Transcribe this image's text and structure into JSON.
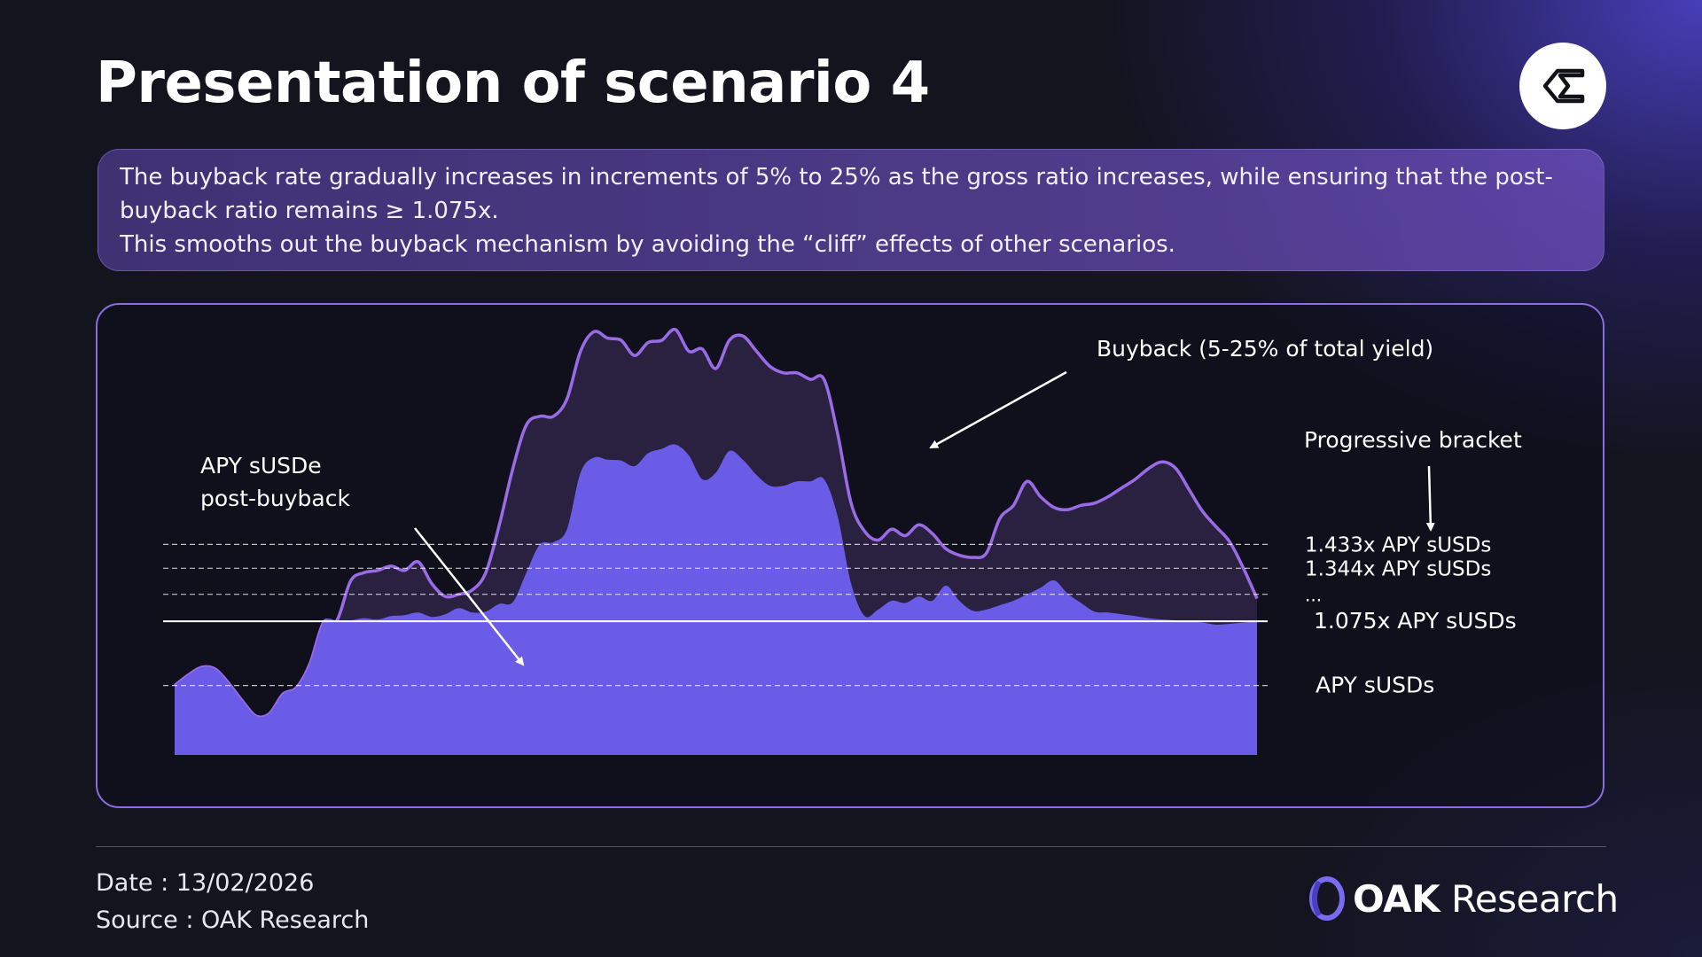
{
  "header": {
    "title": "Presentation of scenario 4",
    "logo_icon": "sigma-icon"
  },
  "description": {
    "line1": "The buyback rate gradually increases in increments of 5% to 25% as the gross ratio increases, while ensuring that the post-buyback ratio remains ≥ 1.075x.",
    "line2": "This smooths out the buyback mechanism by avoiding the “cliff” effects of other scenarios."
  },
  "chart_data": {
    "type": "area",
    "title": "",
    "xlabel": "",
    "ylabel": "",
    "colors": {
      "gross_area": "#2e2446",
      "gross_line": "#9a6be6",
      "post_area": "#6b5ce8",
      "threshold": "#ffffff"
    },
    "ylim": [
      0,
      10
    ],
    "reference_levels": [
      {
        "label": "1.433x APY sUSDs",
        "value": 4.85,
        "style": "dashed"
      },
      {
        "label": "1.344x APY sUSDs",
        "value": 4.3,
        "style": "dashed"
      },
      {
        "label": "...",
        "value": 3.7,
        "style": "dashed"
      },
      {
        "label": "1.075x APY sUSDs",
        "value": 3.08,
        "style": "solid"
      },
      {
        "label": "APY sUSDs",
        "value": 1.6,
        "style": "dashed"
      }
    ],
    "series": [
      {
        "name": "gross",
        "x": [
          0,
          1,
          2,
          3,
          4,
          5,
          6,
          7,
          8,
          9,
          10,
          11,
          12,
          13,
          14,
          15,
          16,
          17,
          18,
          19,
          20,
          21,
          22,
          23,
          24,
          25,
          26,
          27,
          28,
          29,
          30,
          31,
          32,
          33,
          34,
          35,
          36,
          37,
          38,
          39,
          40,
          41,
          42,
          43,
          44,
          45,
          46,
          47,
          48,
          49,
          50,
          51,
          52,
          53,
          54,
          55,
          56,
          57,
          58,
          59,
          60,
          61,
          62,
          63,
          64,
          65,
          66,
          67,
          68,
          69,
          70,
          71,
          72,
          73,
          74,
          75,
          76,
          77,
          78,
          79,
          80
        ],
        "values": [
          1.6,
          1.84,
          2.02,
          1.98,
          1.65,
          1.25,
          0.9,
          0.95,
          1.4,
          1.55,
          2.1,
          3.05,
          3.1,
          4.0,
          4.2,
          4.25,
          4.35,
          4.25,
          4.45,
          3.95,
          3.65,
          3.7,
          3.8,
          4.2,
          5.3,
          6.6,
          7.6,
          7.8,
          7.8,
          8.2,
          9.3,
          9.75,
          9.6,
          9.55,
          9.2,
          9.5,
          9.55,
          9.8,
          9.3,
          9.35,
          8.9,
          9.55,
          9.65,
          9.3,
          8.95,
          8.8,
          8.8,
          8.65,
          8.65,
          7.4,
          5.8,
          5.15,
          4.95,
          5.2,
          5.05,
          5.3,
          5.1,
          4.75,
          4.6,
          4.55,
          4.65,
          5.45,
          5.75,
          6.3,
          5.95,
          5.7,
          5.65,
          5.75,
          5.8,
          5.95,
          6.15,
          6.35,
          6.6,
          6.75,
          6.6,
          6.1,
          5.6,
          5.25,
          4.9,
          4.3,
          3.6
        ]
      },
      {
        "name": "post-buyback",
        "x": [
          0,
          1,
          2,
          3,
          4,
          5,
          6,
          7,
          8,
          9,
          10,
          11,
          12,
          13,
          14,
          15,
          16,
          17,
          18,
          19,
          20,
          21,
          22,
          23,
          24,
          25,
          26,
          27,
          28,
          29,
          30,
          31,
          32,
          33,
          34,
          35,
          36,
          37,
          38,
          39,
          40,
          41,
          42,
          43,
          44,
          45,
          46,
          47,
          48,
          49,
          50,
          51,
          52,
          53,
          54,
          55,
          56,
          57,
          58,
          59,
          60,
          61,
          62,
          63,
          64,
          65,
          66,
          67,
          68,
          69,
          70,
          71,
          72,
          73,
          74,
          75,
          76,
          77,
          78,
          79,
          80
        ],
        "values": [
          1.6,
          1.84,
          2.02,
          1.98,
          1.65,
          1.25,
          0.9,
          0.95,
          1.4,
          1.55,
          2.1,
          3.05,
          3.1,
          3.1,
          3.15,
          3.12,
          3.2,
          3.22,
          3.28,
          3.18,
          3.24,
          3.38,
          3.28,
          3.3,
          3.48,
          3.52,
          4.2,
          4.85,
          4.9,
          5.2,
          6.5,
          6.85,
          6.8,
          6.78,
          6.65,
          6.95,
          7.05,
          7.15,
          6.9,
          6.35,
          6.5,
          7.0,
          6.8,
          6.45,
          6.2,
          6.2,
          6.3,
          6.3,
          6.35,
          5.5,
          3.95,
          3.2,
          3.35,
          3.55,
          3.5,
          3.65,
          3.55,
          3.9,
          3.55,
          3.32,
          3.35,
          3.45,
          3.55,
          3.7,
          3.85,
          4.02,
          3.72,
          3.5,
          3.3,
          3.28,
          3.24,
          3.2,
          3.15,
          3.12,
          3.1,
          3.08,
          3.05,
          3.0,
          3.02,
          3.05,
          3.08
        ]
      }
    ],
    "annotations": [
      {
        "id": "buyback",
        "text": "Buyback (5-25% of total yield)"
      },
      {
        "id": "bracket",
        "text": "Progressive bracket"
      },
      {
        "id": "post1",
        "text": "APY sUSDe"
      },
      {
        "id": "post2",
        "text": "post-buyback"
      }
    ]
  },
  "footer": {
    "date": "Date : 13/02/2026",
    "source": "Source : OAK Research",
    "brand_strong": "OAK",
    "brand_light": "Research"
  }
}
